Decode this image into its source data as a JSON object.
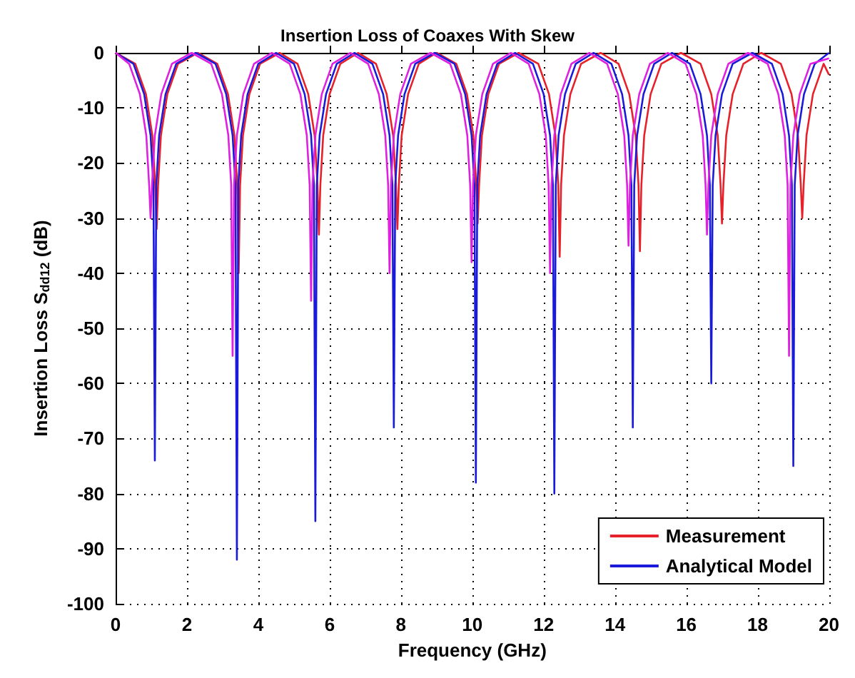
{
  "chart_data": {
    "type": "line",
    "title": "Insertion Loss of Coaxes With Skew",
    "xlabel": "Frequency (GHz)",
    "ylabel": "Insertion Loss S$_{dd12}$ (dB)",
    "xlim": [
      0,
      20
    ],
    "xticks": [
      0,
      2,
      4,
      6,
      8,
      10,
      12,
      14,
      16,
      18,
      20
    ],
    "ylim": [
      -100,
      0
    ],
    "yticks": [
      -100,
      -90,
      -80,
      -70,
      -60,
      -50,
      -40,
      -30,
      -20,
      -10,
      0
    ],
    "grid": true,
    "legend": "bottom right",
    "marker": "none",
    "line_style": "solid",
    "series": [
      {
        "name": "Measurement",
        "color": "#e8202a",
        "x": [
          0,
          0.55,
          0.85,
          1.03,
          1.11,
          1.15,
          1.19,
          1.27,
          1.45,
          1.75,
          2.3,
          2.85,
          3.15,
          3.33,
          3.41,
          3.45,
          3.49,
          3.57,
          3.75,
          4.05,
          4.6,
          5.1,
          5.4,
          5.58,
          5.66,
          5.7,
          5.74,
          5.82,
          6.0,
          6.3,
          6.8,
          7.3,
          7.6,
          7.78,
          7.86,
          7.9,
          7.94,
          8.02,
          8.2,
          8.5,
          9.0,
          9.55,
          9.85,
          10.03,
          10.11,
          10.15,
          10.19,
          10.27,
          10.45,
          10.75,
          11.3,
          11.85,
          12.15,
          12.33,
          12.41,
          12.45,
          12.49,
          12.57,
          12.75,
          13.05,
          13.6,
          14.1,
          14.4,
          14.58,
          14.66,
          14.7,
          14.74,
          14.82,
          15.0,
          15.3,
          15.85,
          16.4,
          16.7,
          16.88,
          16.96,
          17.0,
          17.04,
          17.12,
          17.3,
          17.6,
          18.1,
          18.65,
          18.95,
          19.13,
          19.21,
          19.25,
          19.29,
          19.37,
          19.55,
          19.85,
          20
        ],
        "values": [
          0,
          -2,
          -7.5,
          -15,
          -24,
          -32,
          -24,
          -15,
          -7.5,
          -2,
          0,
          -2,
          -7.5,
          -15,
          -24,
          -40,
          -24,
          -15,
          -7.5,
          -2,
          0,
          -2,
          -7.5,
          -15,
          -24,
          -33,
          -24,
          -15,
          -7.5,
          -2,
          0,
          -2,
          -7.5,
          -15,
          -24,
          -32,
          -24,
          -15,
          -7.5,
          -2,
          0,
          -2,
          -7.5,
          -15,
          -24,
          -31,
          -24,
          -15,
          -7.5,
          -2,
          0,
          -2,
          -7.5,
          -15,
          -24,
          -37,
          -24,
          -15,
          -7.5,
          -2,
          0,
          -2,
          -7.5,
          -15,
          -24,
          -36,
          -24,
          -15,
          -7.5,
          -2,
          0,
          -2,
          -7.5,
          -15,
          -24,
          -31,
          -24,
          -15,
          -7.5,
          -2,
          0,
          -2,
          -7.5,
          -15,
          -24,
          -30,
          -24,
          -15,
          -7.5,
          -2,
          -4
        ]
      },
      {
        "name": "Analytical Model",
        "color": "#1a1adb",
        "x": [
          0,
          0.5,
          0.8,
          0.98,
          1.06,
          1.1,
          1.14,
          1.22,
          1.4,
          1.7,
          2.25,
          2.8,
          3.1,
          3.28,
          3.36,
          3.4,
          3.44,
          3.52,
          3.7,
          4.0,
          4.5,
          5.0,
          5.3,
          5.48,
          5.56,
          5.6,
          5.64,
          5.72,
          5.9,
          6.2,
          6.7,
          7.2,
          7.5,
          7.68,
          7.76,
          7.8,
          7.84,
          7.92,
          8.1,
          8.4,
          8.95,
          9.5,
          9.8,
          9.98,
          10.06,
          10.1,
          10.14,
          10.22,
          10.4,
          10.7,
          11.2,
          11.7,
          12.0,
          12.18,
          12.26,
          12.3,
          12.34,
          12.42,
          12.6,
          12.9,
          13.4,
          13.9,
          14.2,
          14.38,
          14.46,
          14.5,
          14.54,
          14.62,
          14.8,
          15.1,
          15.6,
          16.1,
          16.4,
          16.58,
          16.66,
          16.7,
          16.74,
          16.82,
          17.0,
          17.3,
          17.85,
          18.4,
          18.7,
          18.88,
          18.96,
          19.0,
          19.04,
          19.12,
          19.3,
          19.6,
          20
        ],
        "values": [
          0,
          -2,
          -7.5,
          -15,
          -24,
          -74,
          -24,
          -15,
          -7.5,
          -2,
          0,
          -2,
          -7.5,
          -15,
          -24,
          -92,
          -24,
          -15,
          -7.5,
          -2,
          0,
          -2,
          -7.5,
          -15,
          -24,
          -85,
          -24,
          -15,
          -7.5,
          -2,
          0,
          -2,
          -7.5,
          -15,
          -24,
          -68,
          -24,
          -15,
          -7.5,
          -2,
          0,
          -2,
          -7.5,
          -15,
          -24,
          -78,
          -24,
          -15,
          -7.5,
          -2,
          0,
          -2,
          -7.5,
          -15,
          -24,
          -80,
          -24,
          -15,
          -7.5,
          -2,
          0,
          -2,
          -7.5,
          -15,
          -24,
          -68,
          -24,
          -15,
          -7.5,
          -2,
          0,
          -2,
          -7.5,
          -15,
          -24,
          -60,
          -24,
          -15,
          -7.5,
          -2,
          0,
          -2,
          -7.5,
          -15,
          -24,
          -75,
          -24,
          -15,
          -7.5,
          -2,
          0
        ]
      },
      {
        "color": "#e020e0",
        "x": [
          0,
          0.38,
          0.68,
          0.86,
          0.94,
          0.98,
          1.02,
          1.1,
          1.28,
          1.58,
          2.13,
          2.68,
          2.98,
          3.16,
          3.24,
          3.28,
          3.32,
          3.4,
          3.58,
          3.88,
          4.38,
          4.88,
          5.18,
          5.36,
          5.44,
          5.48,
          5.52,
          5.6,
          5.78,
          6.08,
          6.58,
          7.08,
          7.38,
          7.56,
          7.64,
          7.68,
          7.72,
          7.8,
          7.98,
          8.28,
          8.83,
          9.38,
          9.68,
          9.86,
          9.94,
          9.98,
          10.02,
          10.1,
          10.28,
          10.58,
          11.08,
          11.58,
          11.88,
          12.06,
          12.14,
          12.18,
          12.22,
          12.3,
          12.48,
          12.78,
          13.28,
          13.78,
          14.08,
          14.26,
          14.34,
          14.38,
          14.42,
          14.5,
          14.68,
          14.98,
          15.48,
          15.98,
          16.28,
          16.46,
          16.54,
          16.58,
          16.62,
          16.7,
          16.88,
          17.18,
          17.73,
          18.28,
          18.58,
          18.76,
          18.84,
          18.88,
          18.92,
          19.0,
          19.18,
          19.48,
          20
        ],
        "values": [
          0,
          -2,
          -7.5,
          -15,
          -24,
          -30,
          -24,
          -15,
          -7.5,
          -2,
          0,
          -2,
          -7.5,
          -15,
          -24,
          -55,
          -24,
          -15,
          -7.5,
          -2,
          0,
          -2,
          -7.5,
          -15,
          -24,
          -45,
          -24,
          -15,
          -7.5,
          -2,
          0,
          -2,
          -7.5,
          -15,
          -24,
          -40,
          -24,
          -15,
          -7.5,
          -2,
          0,
          -2,
          -7.5,
          -15,
          -24,
          -38,
          -24,
          -15,
          -7.5,
          -2,
          0,
          -2,
          -7.5,
          -15,
          -24,
          -40,
          -24,
          -15,
          -7.5,
          -2,
          0,
          -2,
          -7.5,
          -15,
          -24,
          -35,
          -24,
          -15,
          -7.5,
          -2,
          0,
          -2,
          -7.5,
          -15,
          -24,
          -33,
          -24,
          -15,
          -7.5,
          -2,
          0,
          -2,
          -7.5,
          -15,
          -24,
          -55,
          -24,
          -15,
          -7.5,
          -2,
          -1
        ]
      }
    ]
  }
}
